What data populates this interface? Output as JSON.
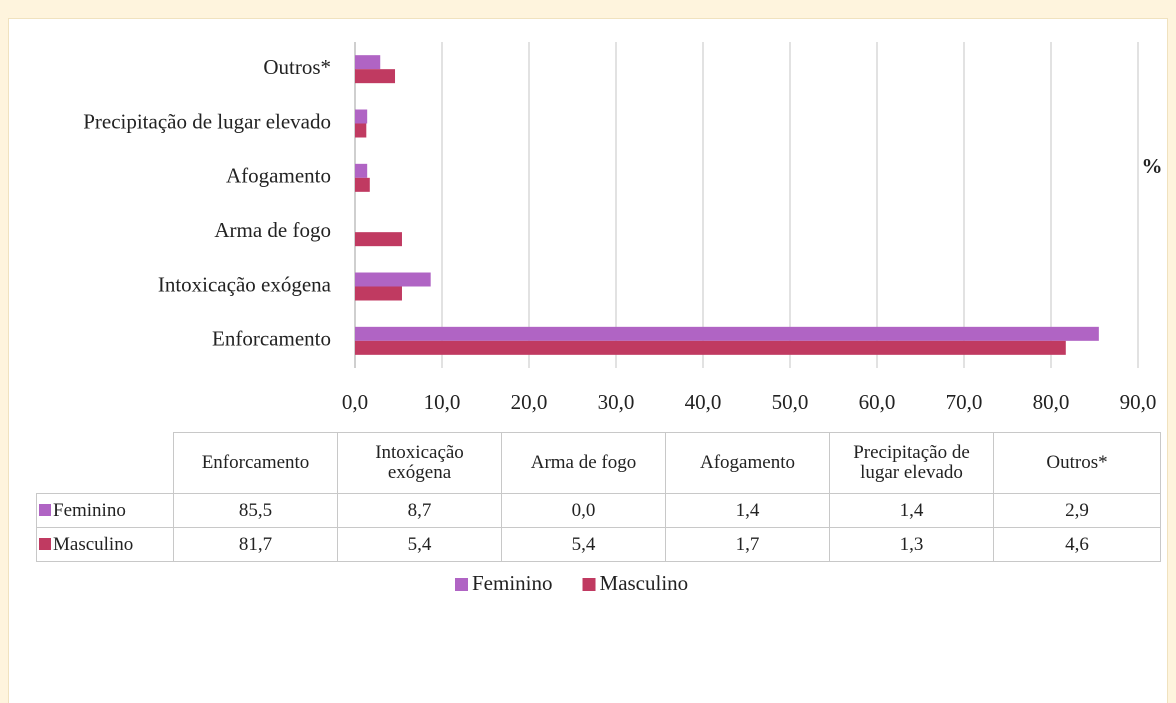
{
  "chart_data": {
    "type": "hbar",
    "unit_label": "%",
    "categories": [
      "Enforcamento",
      "Intoxicação exógena",
      "Arma de fogo",
      "Afogamento",
      "Precipitação de lugar elevado",
      "Outros*"
    ],
    "series": [
      {
        "name": "Feminino",
        "color": "#b064c4",
        "values": [
          85.5,
          8.7,
          0.0,
          1.4,
          1.4,
          2.9
        ],
        "value_labels": [
          "85,5",
          "8,7",
          "0,0",
          "1,4",
          "1,4",
          "2,9"
        ]
      },
      {
        "name": "Masculino",
        "color": "#c03a61",
        "values": [
          81.7,
          5.4,
          5.4,
          1.7,
          1.3,
          4.6
        ],
        "value_labels": [
          "81,7",
          "5,4",
          "5,4",
          "1,7",
          "1,3",
          "4,6"
        ]
      }
    ],
    "xlim": [
      0,
      90
    ],
    "xticks": [
      {
        "value": 0,
        "label": "0,0"
      },
      {
        "value": 10,
        "label": "10,0"
      },
      {
        "value": 20,
        "label": "20,0"
      },
      {
        "value": 30,
        "label": "30,0"
      },
      {
        "value": 40,
        "label": "40,0"
      },
      {
        "value": 50,
        "label": "50,0"
      },
      {
        "value": 60,
        "label": "60,0"
      },
      {
        "value": 70,
        "label": "70,0"
      },
      {
        "value": 80,
        "label": "80,0"
      },
      {
        "value": 90,
        "label": "90,0"
      }
    ],
    "grid": true
  }
}
